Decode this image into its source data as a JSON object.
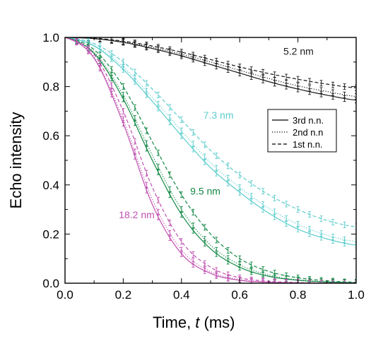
{
  "chart_data": {
    "type": "line",
    "xlabel": "Time, t (ms)",
    "xlabel_parts": {
      "pre": "Time, ",
      "var": "t",
      "post": " (ms)"
    },
    "ylabel": "Echo intensity",
    "xlim": [
      0.0,
      1.0
    ],
    "ylim": [
      0.0,
      1.0
    ],
    "xticks": [
      "0.0",
      "0.2",
      "0.4",
      "0.6",
      "0.8",
      "1.0"
    ],
    "yticks": [
      "0.0",
      "0.2",
      "0.4",
      "0.6",
      "0.8",
      "1.0"
    ],
    "grid": false,
    "legend": {
      "placement": "right",
      "entries": [
        {
          "label": "3rd n.n.",
          "style": "solid"
        },
        {
          "label": "2nd n.n",
          "style": "dotted"
        },
        {
          "label": "1st n.n.",
          "style": "dashed"
        }
      ]
    },
    "x": [
      0.0,
      0.1,
      0.2,
      0.3,
      0.4,
      0.5,
      0.6,
      0.7,
      0.8,
      0.9,
      1.0
    ],
    "series": [
      {
        "name": "5.2 nm",
        "color": "#1a1a1a",
        "curves": {
          "solid": [
            1.0,
            0.995,
            0.98,
            0.955,
            0.925,
            0.89,
            0.855,
            0.82,
            0.79,
            0.765,
            0.745
          ],
          "dotted": [
            1.0,
            0.996,
            0.982,
            0.96,
            0.932,
            0.9,
            0.866,
            0.833,
            0.803,
            0.78,
            0.76
          ],
          "dashed": [
            1.0,
            0.997,
            0.985,
            0.965,
            0.94,
            0.91,
            0.88,
            0.853,
            0.83,
            0.81,
            0.795
          ]
        }
      },
      {
        "name": "7.3 nm",
        "color": "#5ccccc",
        "curves": {
          "solid": [
            1.0,
            0.965,
            0.87,
            0.74,
            0.6,
            0.47,
            0.37,
            0.285,
            0.22,
            0.18,
            0.155
          ],
          "dotted": [
            1.0,
            0.968,
            0.88,
            0.755,
            0.62,
            0.49,
            0.39,
            0.305,
            0.24,
            0.195,
            0.17
          ],
          "dashed": [
            1.0,
            0.975,
            0.9,
            0.79,
            0.665,
            0.54,
            0.44,
            0.36,
            0.3,
            0.255,
            0.23
          ]
        }
      },
      {
        "name": "9.5 nm",
        "color": "#118844",
        "curves": {
          "solid": [
            1.0,
            0.935,
            0.75,
            0.5,
            0.28,
            0.14,
            0.065,
            0.028,
            0.012,
            0.005,
            0.002
          ],
          "dotted": [
            1.0,
            0.94,
            0.765,
            0.52,
            0.3,
            0.155,
            0.075,
            0.033,
            0.014,
            0.006,
            0.003
          ],
          "dashed": [
            1.0,
            0.95,
            0.8,
            0.575,
            0.36,
            0.2,
            0.1,
            0.048,
            0.022,
            0.01,
            0.004
          ]
        }
      },
      {
        "name": "18.2 nm",
        "color": "#c050b0",
        "curves": {
          "solid": [
            1.0,
            0.915,
            0.65,
            0.32,
            0.12,
            0.04,
            0.012,
            0.004,
            0.001,
            0.0,
            0.0
          ],
          "dotted": [
            1.0,
            0.92,
            0.665,
            0.34,
            0.135,
            0.047,
            0.015,
            0.005,
            0.002,
            0.0,
            0.0
          ],
          "dashed": [
            1.0,
            0.93,
            0.7,
            0.39,
            0.17,
            0.065,
            0.022,
            0.008,
            0.003,
            0.001,
            0.0
          ]
        }
      }
    ],
    "annotations": [
      {
        "text": "5.2 nm",
        "series": "5.2 nm",
        "x": 0.75,
        "y": 0.93
      },
      {
        "text": "7.3 nm",
        "series": "7.3 nm",
        "x": 0.475,
        "y": 0.67
      },
      {
        "text": "9.5 nm",
        "series": "9.5 nm",
        "x": 0.43,
        "y": 0.36
      },
      {
        "text": "18.2 nm",
        "series": "18.2 nm",
        "x": 0.185,
        "y": 0.265
      }
    ]
  }
}
